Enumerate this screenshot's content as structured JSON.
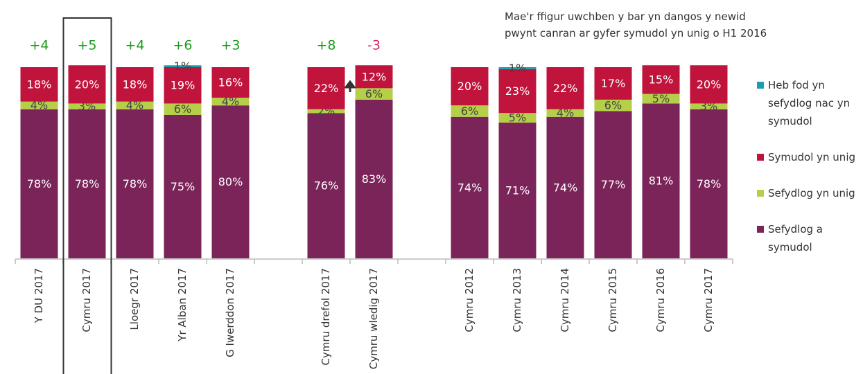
{
  "chart_data": {
    "type": "stacked_bar",
    "note": [
      "Mae'r ffigur uwchben y bar yn dangos y newid",
      "pwynt canran ar gyfer symudol yn unig o H1 2016"
    ],
    "categories": [
      "Y DU 2017",
      "Cymru 2017",
      "Lloegr 2017",
      "Yr Alban 2017",
      "G Iwerddon 2017",
      null,
      "Cymru drefol 2017",
      "Cymru wledig 2017",
      null,
      "Cymru 2012",
      "Cymru 2013",
      "Cymru 2014",
      "Cymru 2015",
      "Cymru 2016",
      "Cymru 2017"
    ],
    "series": [
      {
        "name": "Sefydlog a symudol",
        "color": "#7b2459",
        "values": [
          78,
          78,
          78,
          75,
          80,
          null,
          76,
          83,
          null,
          74,
          71,
          74,
          77,
          81,
          78
        ],
        "value_labels": [
          "78%",
          "78%",
          "78%",
          "75%",
          "80%",
          null,
          "76%",
          "83%",
          null,
          "74%",
          "71%",
          "74%",
          "77%",
          "81%",
          "78%"
        ]
      },
      {
        "name": "Sefydlog yn unig",
        "color": "#b5cf49",
        "values": [
          4,
          3,
          4,
          6,
          4,
          null,
          2,
          6,
          null,
          6,
          5,
          4,
          6,
          5,
          3
        ],
        "value_labels": [
          "4%",
          "3%",
          "4%",
          "6%",
          "4%",
          null,
          "2%",
          "6%",
          null,
          "6%",
          "5%",
          "4%",
          "6%",
          "5%",
          "3%"
        ]
      },
      {
        "name": "Symudol yn unig",
        "color": "#c0143c",
        "values": [
          18,
          20,
          18,
          19,
          16,
          null,
          22,
          12,
          null,
          20,
          23,
          22,
          17,
          15,
          20
        ],
        "value_labels": [
          "18%",
          "20%",
          "18%",
          "19%",
          "16%",
          null,
          "22%",
          "12%",
          null,
          "20%",
          "23%",
          "22%",
          "17%",
          "15%",
          "20%"
        ]
      },
      {
        "name": "Heb fod yn sefydlog nac yn symudol",
        "color": "#1b9fb0",
        "values": [
          null,
          null,
          null,
          1,
          null,
          null,
          null,
          null,
          null,
          null,
          1,
          null,
          null,
          null,
          null
        ],
        "value_labels": [
          null,
          null,
          null,
          "1%",
          null,
          null,
          null,
          null,
          null,
          null,
          "1%",
          null,
          null,
          null,
          null
        ]
      }
    ],
    "changes": {
      "values": [
        4,
        5,
        4,
        6,
        3,
        null,
        8,
        -3,
        null,
        null,
        null,
        null,
        null,
        null,
        null
      ],
      "value_labels": [
        "+4",
        "+5",
        "+4",
        "+6",
        "+3",
        null,
        "+8",
        "-3",
        null,
        null,
        null,
        null,
        null,
        null,
        null
      ],
      "positive_color": "#1a9a1a",
      "negative_color": "#e0245e"
    },
    "highlight_category": 1
  }
}
